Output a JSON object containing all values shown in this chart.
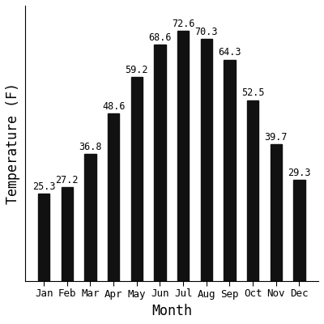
{
  "months": [
    "Jan",
    "Feb",
    "Mar",
    "Apr",
    "May",
    "Jun",
    "Jul",
    "Aug",
    "Sep",
    "Oct",
    "Nov",
    "Dec"
  ],
  "temperatures": [
    25.3,
    27.2,
    36.8,
    48.6,
    59.2,
    68.6,
    72.6,
    70.3,
    64.3,
    52.5,
    39.7,
    29.3
  ],
  "bar_color": "#111111",
  "xlabel": "Month",
  "ylabel": "Temperature (F)",
  "ylim": [
    0,
    80
  ],
  "label_fontsize": 12,
  "tick_fontsize": 9,
  "value_fontsize": 8.5,
  "background_color": "#ffffff",
  "figure_color": "#ffffff",
  "bar_width": 0.5
}
